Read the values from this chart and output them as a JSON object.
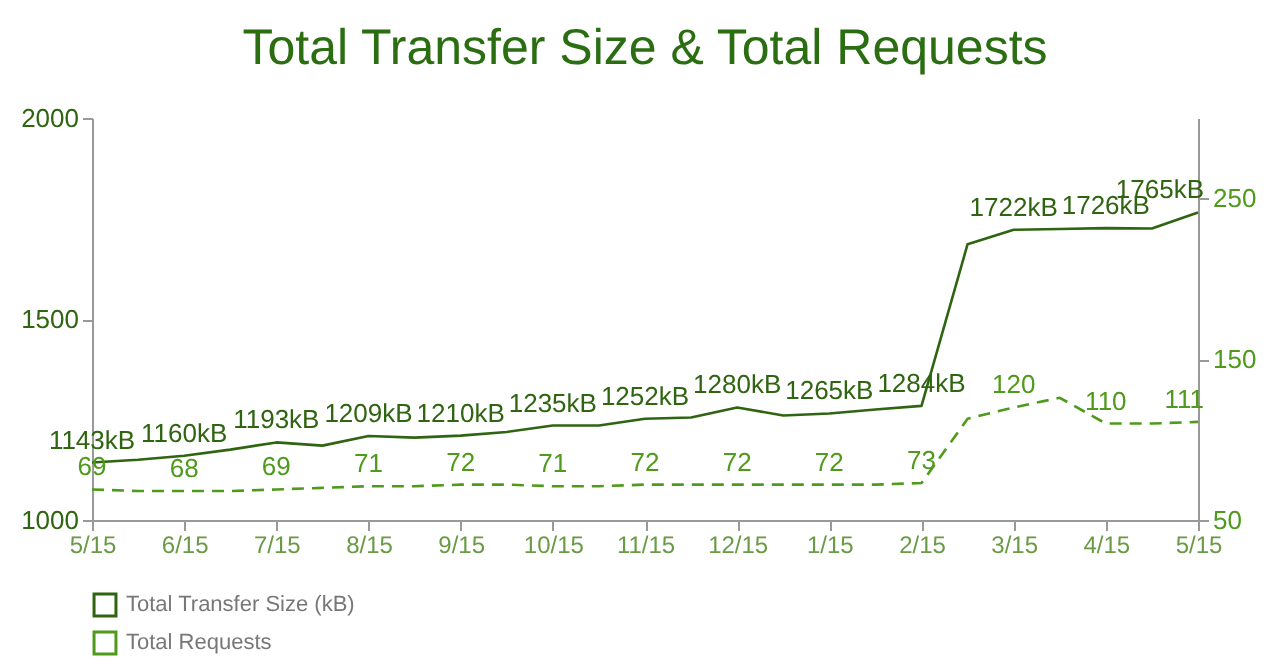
{
  "chart_data": {
    "type": "line",
    "title": "Total Transfer Size & Total Requests",
    "categories": [
      "5/15",
      null,
      "6/15",
      null,
      "7/15",
      null,
      "8/15",
      null,
      "9/15",
      null,
      "10/15",
      null,
      "11/15",
      null,
      "12/15",
      null,
      "1/15",
      null,
      "2/15",
      null,
      "3/15",
      null,
      "4/15",
      null,
      "5/15"
    ],
    "series": [
      {
        "name": "Total Transfer Size (kB)",
        "color": "#2f6410",
        "line_style": "solid",
        "values": [
          1143,
          1150,
          1160,
          1175,
          1193,
          1185,
          1209,
          1205,
          1210,
          1219,
          1235,
          1235,
          1252,
          1255,
          1280,
          1260,
          1265,
          1275,
          1284,
          1686,
          1722,
          1724,
          1726,
          1725,
          1765
        ],
        "value_labels": [
          "1143kB",
          null,
          "1160kB",
          null,
          "1193kB",
          null,
          "1209kB",
          null,
          "1210kB",
          null,
          "1235kB",
          null,
          "1252kB",
          null,
          "1280kB",
          null,
          "1265kB",
          null,
          "1284kB",
          null,
          "1722kB",
          null,
          "1726kB",
          null,
          "1765kB"
        ]
      },
      {
        "name": "Total Requests",
        "color": "#4f9a1c",
        "line_style": "dashed",
        "axis": "y2",
        "values": [
          69,
          68,
          68,
          68,
          69,
          70,
          71,
          71,
          72,
          72,
          71,
          71,
          72,
          72,
          72,
          72,
          72,
          72,
          73,
          113,
          120,
          126,
          110,
          110,
          111
        ],
        "value_labels": [
          "69",
          null,
          "68",
          null,
          "69",
          null,
          "71",
          null,
          "72",
          null,
          "71",
          null,
          "72",
          null,
          "72",
          null,
          "72",
          null,
          "73",
          null,
          "120",
          null,
          "110",
          null,
          "111"
        ]
      }
    ],
    "ylim": [
      1000,
      2000
    ],
    "yticks": [
      1000,
      1500,
      2000
    ],
    "y2lim": [
      50,
      300
    ],
    "y2ticks": [
      50,
      150,
      250
    ],
    "legend": "bottom",
    "grid": false,
    "marker": "none"
  }
}
